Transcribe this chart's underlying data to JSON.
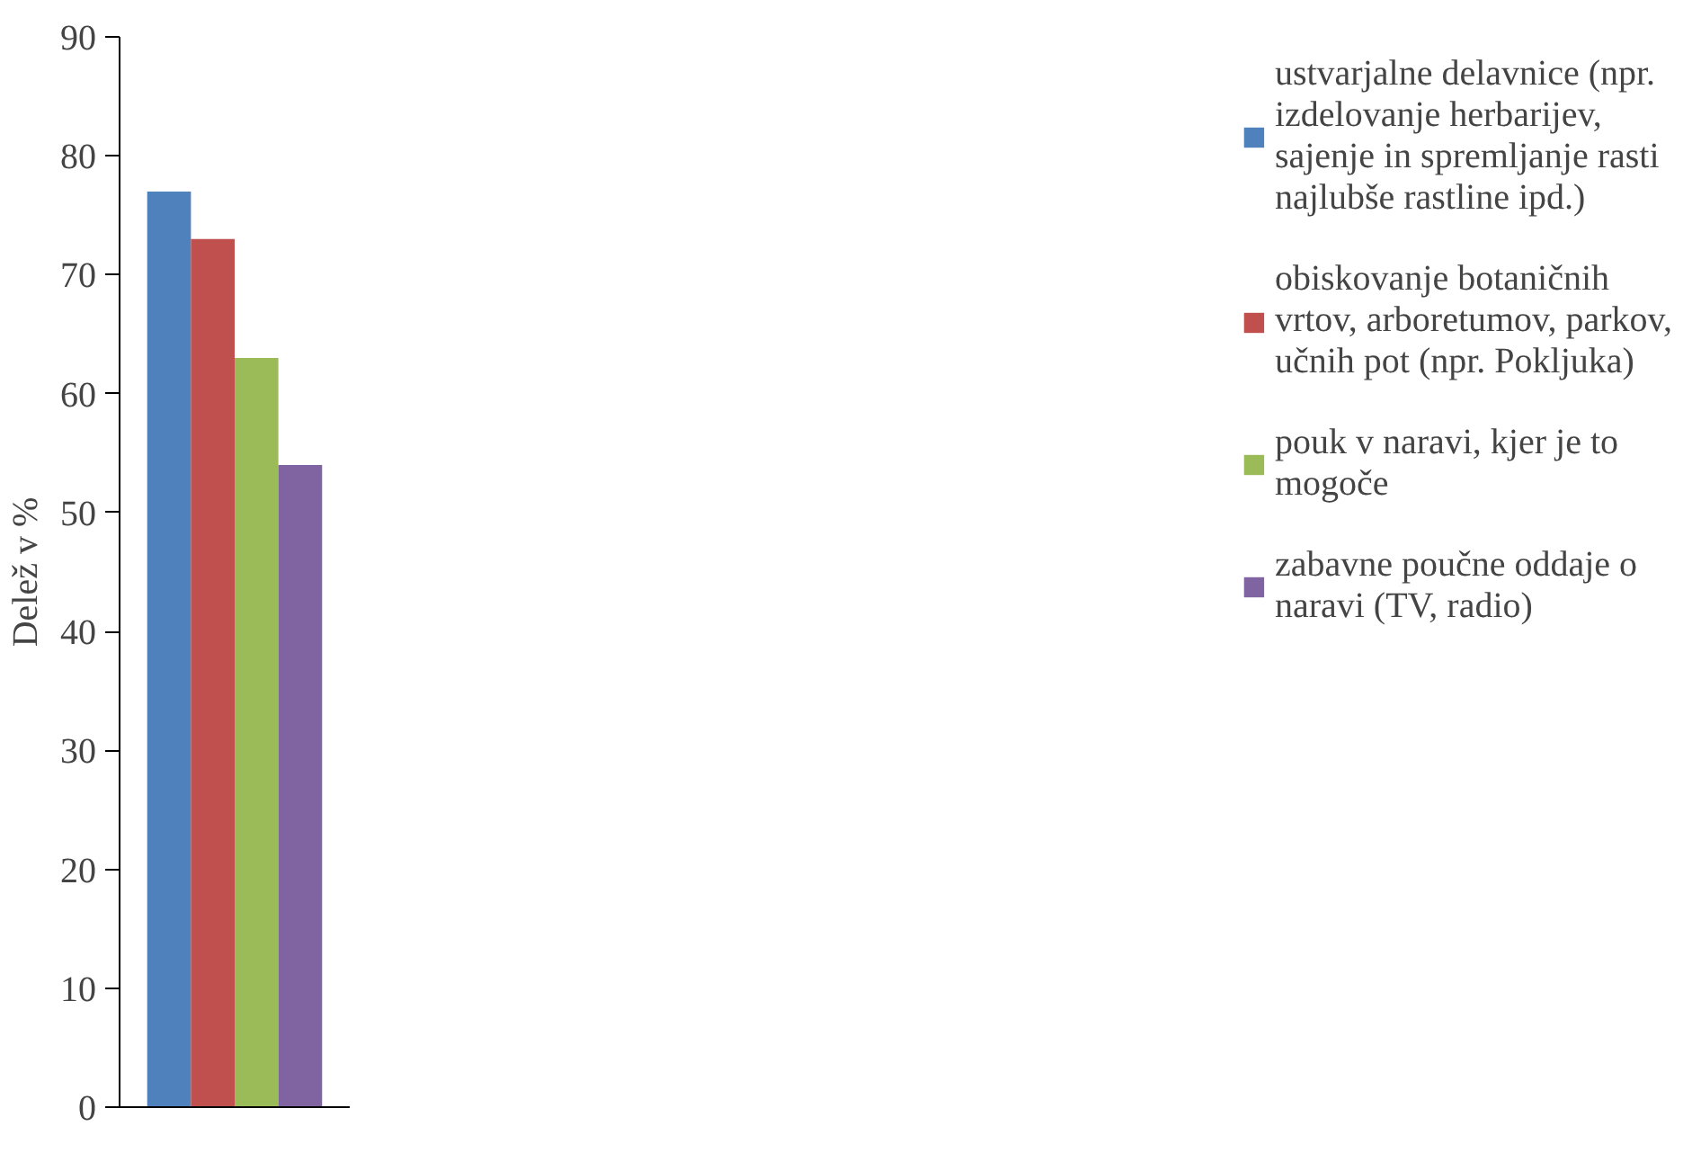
{
  "chart_data": {
    "type": "bar",
    "ylabel": "Delež v %",
    "categories": [
      null
    ],
    "series": [
      {
        "name": "ustvarjalne delavnice (npr. izdelovanje herbarijev, sajenje in spremljanje rasti najlubše rastline ipd.)",
        "color": "#4f81bd",
        "values": [
          77
        ]
      },
      {
        "name": "obiskovanje botaničnih vrtov, arboretumov, parkov, učnih pot (npr. Pokljuka)",
        "color": "#c0504d",
        "values": [
          73
        ]
      },
      {
        "name": "pouk v naravi, kjer je to mogoče",
        "color": "#9bbb59",
        "values": [
          63
        ]
      },
      {
        "name": "zabavne poučne oddaje o naravi (TV, radio)",
        "color": "#8064a2",
        "values": [
          54
        ]
      }
    ],
    "ylim": [
      0,
      90
    ],
    "yticks": [
      0,
      10,
      20,
      30,
      40,
      50,
      60,
      70,
      80,
      90
    ],
    "grid": false,
    "legend": "right"
  }
}
